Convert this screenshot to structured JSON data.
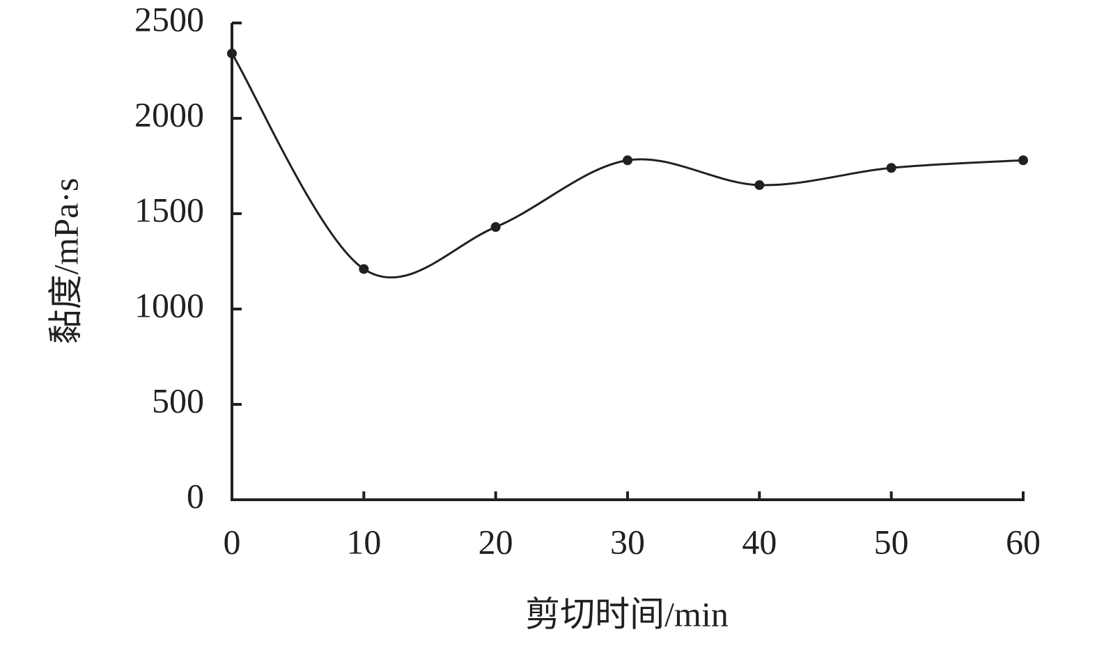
{
  "chart_data": {
    "type": "line",
    "x_label": "剪切时间/min",
    "y_label": "黏度/mPa·s",
    "x": [
      0,
      10,
      20,
      30,
      40,
      50,
      60
    ],
    "series": [
      {
        "name": "黏度",
        "color": "#231f20",
        "values": [
          2340,
          1210,
          1430,
          1780,
          1650,
          1740,
          1780
        ]
      }
    ],
    "xlim": [
      0,
      60
    ],
    "xticks": [
      0,
      10,
      20,
      30,
      40,
      50,
      60
    ],
    "ylim": [
      0,
      2500
    ],
    "yticks": [
      0,
      500,
      1000,
      1500,
      2000,
      2500
    ],
    "smooth": true,
    "markers": true,
    "grid": false
  }
}
